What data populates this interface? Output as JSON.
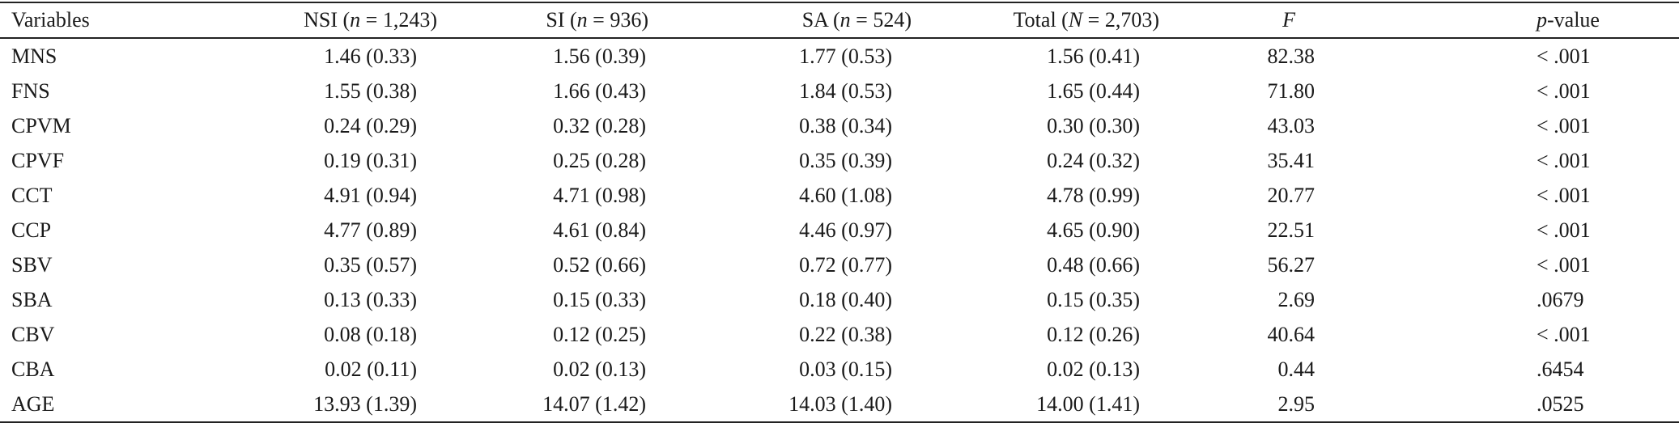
{
  "table": {
    "headers": {
      "variables": "Variables",
      "nsi": {
        "prefix": "NSI (",
        "n": "n",
        "rest": " = 1,243)"
      },
      "si": {
        "prefix": "SI (",
        "n": "n",
        "rest": " = 936)"
      },
      "sa": {
        "prefix": "SA (",
        "n": "n",
        "rest": " = 524)"
      },
      "total": {
        "prefix": "Total (",
        "n": "N",
        "rest": " = 2,703)"
      },
      "f": "F",
      "p": {
        "italic": "p",
        "rest": "-value"
      }
    },
    "rows": [
      {
        "var": "MNS",
        "nsi": "1.46 (0.33)",
        "si": "1.56 (0.39)",
        "sa": "1.77 (0.53)",
        "total": "1.56 (0.41)",
        "f": "82.38",
        "p": "< .001"
      },
      {
        "var": "FNS",
        "nsi": "1.55 (0.38)",
        "si": "1.66 (0.43)",
        "sa": "1.84 (0.53)",
        "total": "1.65 (0.44)",
        "f": "71.80",
        "p": "< .001"
      },
      {
        "var": "CPVM",
        "nsi": "0.24 (0.29)",
        "si": "0.32 (0.28)",
        "sa": "0.38 (0.34)",
        "total": "0.30 (0.30)",
        "f": "43.03",
        "p": "< .001"
      },
      {
        "var": "CPVF",
        "nsi": "0.19 (0.31)",
        "si": "0.25 (0.28)",
        "sa": "0.35 (0.39)",
        "total": "0.24 (0.32)",
        "f": "35.41",
        "p": "< .001"
      },
      {
        "var": "CCT",
        "nsi": "4.91 (0.94)",
        "si": "4.71 (0.98)",
        "sa": "4.60 (1.08)",
        "total": "4.78 (0.99)",
        "f": "20.77",
        "p": "< .001"
      },
      {
        "var": "CCP",
        "nsi": "4.77 (0.89)",
        "si": "4.61 (0.84)",
        "sa": "4.46 (0.97)",
        "total": "4.65 (0.90)",
        "f": "22.51",
        "p": "< .001"
      },
      {
        "var": "SBV",
        "nsi": "0.35 (0.57)",
        "si": "0.52 (0.66)",
        "sa": "0.72 (0.77)",
        "total": "0.48 (0.66)",
        "f": "56.27",
        "p": "< .001"
      },
      {
        "var": "SBA",
        "nsi": "0.13 (0.33)",
        "si": "0.15 (0.33)",
        "sa": "0.18 (0.40)",
        "total": "0.15 (0.35)",
        "f": "2.69",
        "p": ".0679"
      },
      {
        "var": "CBV",
        "nsi": "0.08 (0.18)",
        "si": "0.12 (0.25)",
        "sa": "0.22 (0.38)",
        "total": "0.12 (0.26)",
        "f": "40.64",
        "p": "< .001"
      },
      {
        "var": "CBA",
        "nsi": "0.02 (0.11)",
        "si": "0.02 (0.13)",
        "sa": "0.03 (0.15)",
        "total": "0.02 (0.13)",
        "f": "0.44",
        "p": ".6454"
      },
      {
        "var": "AGE",
        "nsi": "13.93 (1.39)",
        "si": "14.07 (1.42)",
        "sa": "14.03 (1.40)",
        "total": "14.00 (1.41)",
        "f": "2.95",
        "p": ".0525"
      }
    ]
  }
}
